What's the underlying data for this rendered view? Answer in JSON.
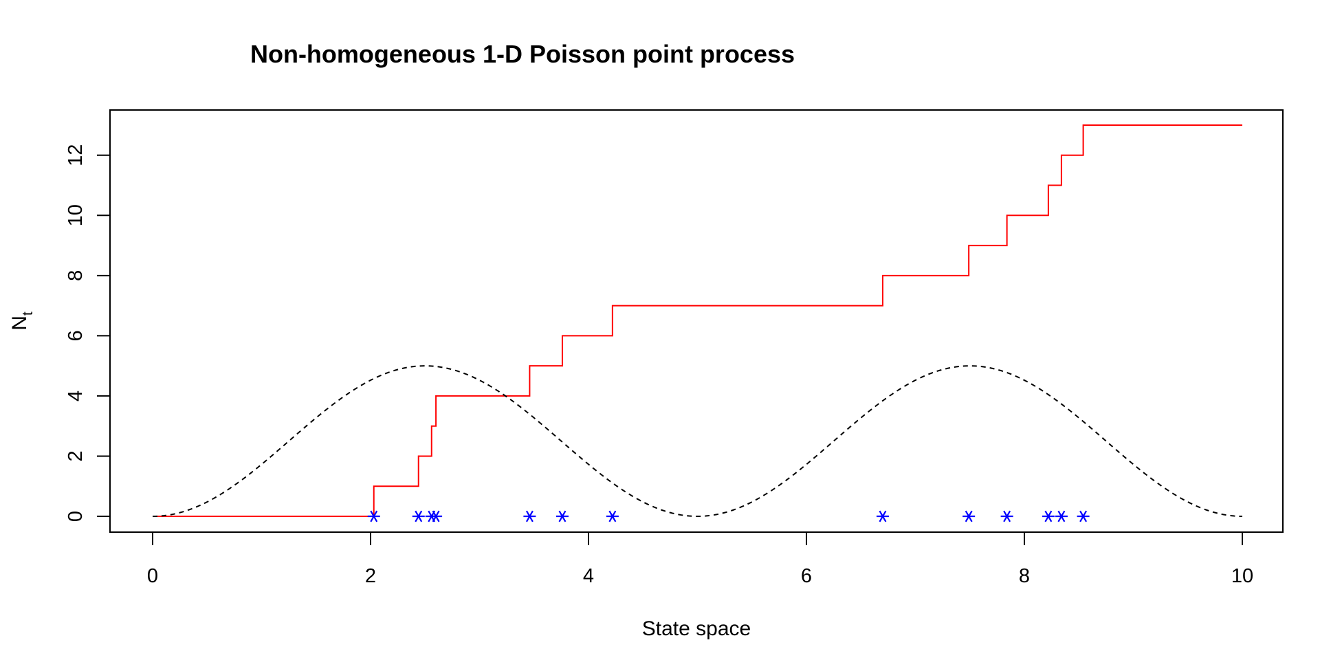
{
  "chart_data": {
    "type": "line",
    "title": "Non-homogeneous 1-D Poisson point process",
    "xlabel": "State space",
    "ylabel_main": "N",
    "ylabel_sub": "t",
    "xlim": [
      0,
      10
    ],
    "ylim": [
      0,
      13
    ],
    "xticks": [
      0,
      2,
      4,
      6,
      8,
      10
    ],
    "yticks": [
      0,
      2,
      4,
      6,
      8,
      10,
      12
    ],
    "grid": false,
    "series": [
      {
        "style": "step",
        "color": "#ff0000",
        "x": [
          0,
          2.03,
          2.44,
          2.56,
          2.6,
          3.46,
          3.76,
          4.22,
          6.7,
          7.49,
          7.84,
          8.22,
          8.34,
          8.54,
          10
        ],
        "values": [
          0,
          1,
          2,
          3,
          4,
          5,
          6,
          7,
          8,
          9,
          10,
          11,
          12,
          13,
          13
        ]
      },
      {
        "style": "dashed",
        "color": "#000000",
        "function": "intensity",
        "amplitude": 5,
        "period": 5,
        "x_range": [
          0,
          10
        ]
      },
      {
        "style": "points",
        "marker": "asterisk",
        "color": "#0000ff",
        "x": [
          2.03,
          2.44,
          2.56,
          2.6,
          3.46,
          3.76,
          4.22,
          6.7,
          7.49,
          7.84,
          8.22,
          8.34,
          8.54
        ],
        "values": [
          0,
          0,
          0,
          0,
          0,
          0,
          0,
          0,
          0,
          0,
          0,
          0,
          0
        ]
      }
    ]
  }
}
